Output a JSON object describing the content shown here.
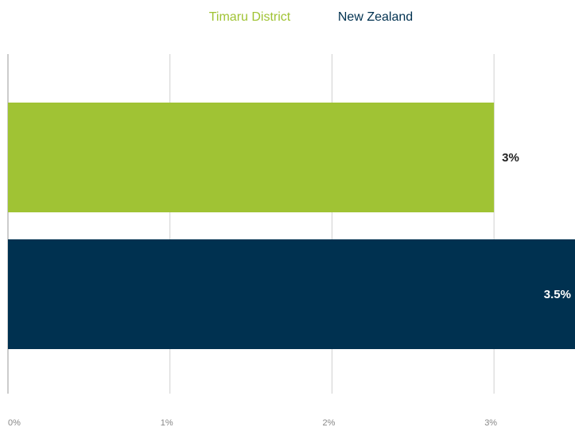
{
  "chart_data": {
    "type": "bar",
    "orientation": "horizontal",
    "series": [
      {
        "name": "Timaru District",
        "color": "#a0c334",
        "values": [
          3
        ],
        "value_labels": [
          "3%"
        ]
      },
      {
        "name": "New Zealand",
        "color": "#003150",
        "values": [
          3.5
        ],
        "value_labels": [
          "3.5%"
        ]
      }
    ],
    "xlim": [
      0,
      3.5
    ],
    "xticks": [
      {
        "value": 0,
        "label": "0%"
      },
      {
        "value": 1,
        "label": "1%"
      },
      {
        "value": 2,
        "label": "2%"
      },
      {
        "value": 3,
        "label": "3%"
      }
    ],
    "grid": true,
    "legend": "top"
  }
}
